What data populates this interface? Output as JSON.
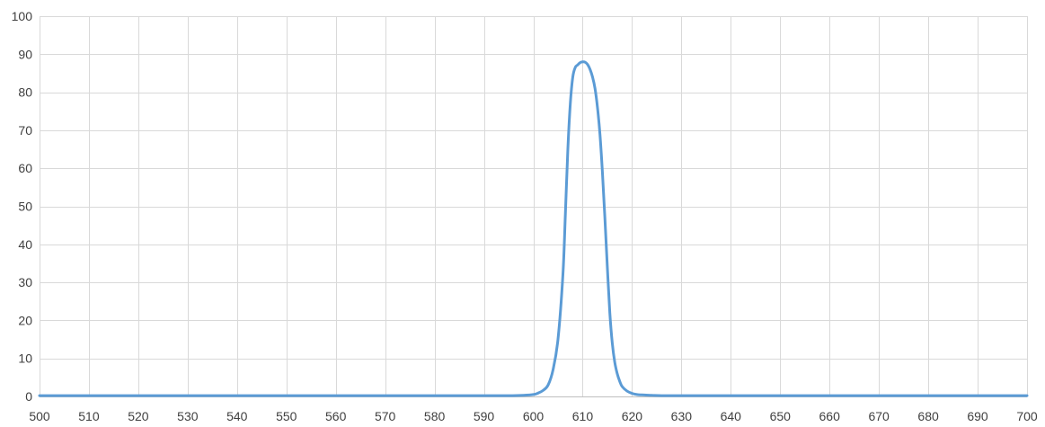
{
  "chart_data": {
    "type": "line",
    "title": "",
    "xlabel": "",
    "ylabel": "",
    "xlim": [
      500,
      700
    ],
    "ylim": [
      0,
      100
    ],
    "x_ticks": [
      500,
      510,
      520,
      530,
      540,
      550,
      560,
      570,
      580,
      590,
      600,
      610,
      620,
      630,
      640,
      650,
      660,
      670,
      680,
      690,
      700
    ],
    "y_ticks": [
      0,
      10,
      20,
      30,
      40,
      50,
      60,
      70,
      80,
      90,
      100
    ],
    "grid": true,
    "legend": "none",
    "series": [
      {
        "color": "#5b9bd5",
        "x": [
          500,
          520,
          540,
          560,
          580,
          590,
          595,
          598,
          600,
          601,
          602,
          603,
          604,
          605,
          606,
          606.5,
          607,
          607.5,
          608,
          608.5,
          609,
          609.5,
          610,
          610.5,
          611,
          611.5,
          612,
          612.5,
          613,
          613.5,
          614,
          614.5,
          615,
          615.5,
          616,
          616.5,
          617,
          617.5,
          618,
          619,
          620,
          621,
          622,
          624,
          626,
          630,
          640,
          660,
          680,
          700
        ],
        "y": [
          0.2,
          0.2,
          0.2,
          0.2,
          0.2,
          0.2,
          0.2,
          0.3,
          0.5,
          0.9,
          1.6,
          3,
          7,
          15,
          32,
          48,
          65,
          77,
          84,
          86.5,
          87.2,
          87.8,
          88,
          87.9,
          87.3,
          86,
          84,
          81,
          76,
          69,
          59,
          47,
          34,
          22,
          14,
          9,
          6,
          4,
          2.6,
          1.4,
          0.8,
          0.5,
          0.4,
          0.3,
          0.2,
          0.2,
          0.2,
          0.2,
          0.2,
          0.2
        ]
      }
    ]
  }
}
